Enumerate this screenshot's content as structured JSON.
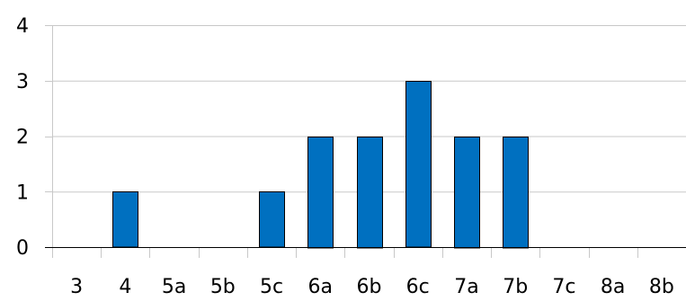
{
  "chart_data": {
    "type": "bar",
    "categories": [
      "3",
      "4",
      "5a",
      "5b",
      "5c",
      "6a",
      "6b",
      "6c",
      "7a",
      "7b",
      "7c",
      "8a",
      "8b"
    ],
    "values": [
      0,
      1,
      0,
      0,
      1,
      2,
      2,
      3,
      2,
      2,
      0,
      0,
      0
    ],
    "title": "",
    "xlabel": "",
    "ylabel": "",
    "ylim": [
      0,
      4
    ],
    "yticks": [
      0,
      1,
      2,
      3,
      4
    ],
    "grid": true,
    "legend": "none",
    "colors": {
      "bar": "#0070c0",
      "bar_edge": "#000000",
      "grid": "#c8c8c8",
      "axis": "#000000"
    }
  }
}
